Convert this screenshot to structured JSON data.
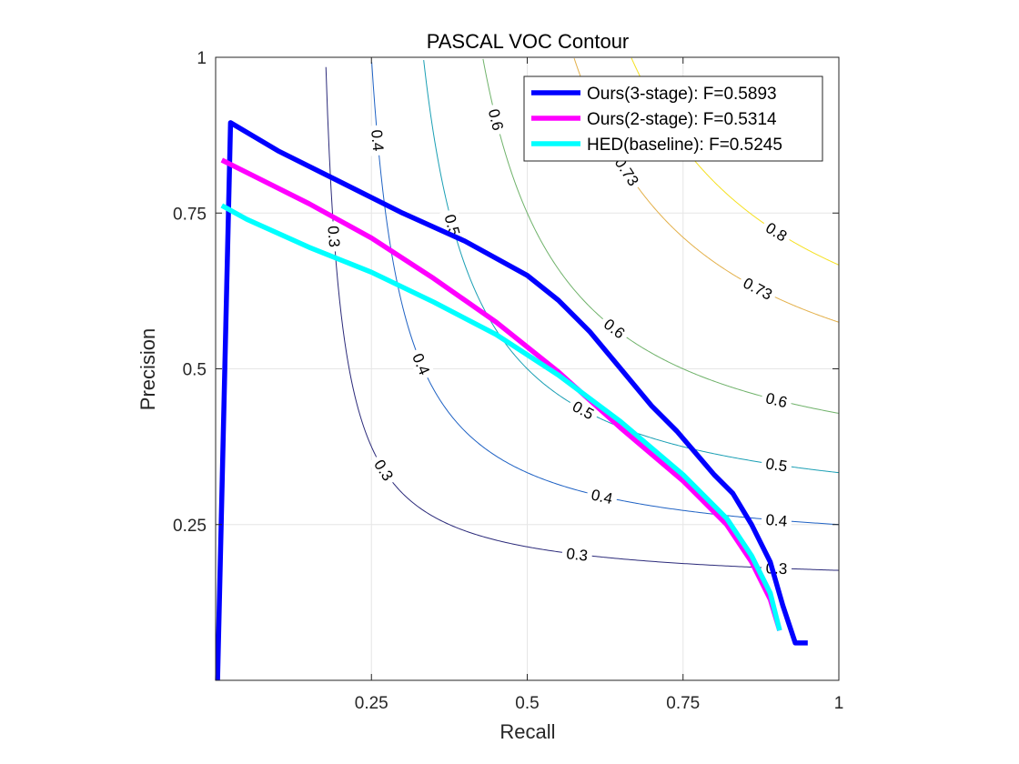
{
  "chart_data": {
    "type": "line",
    "title": "PASCAL VOC Contour",
    "xlabel": "Recall",
    "ylabel": "Precision",
    "xlim": [
      0,
      1
    ],
    "ylim": [
      0,
      1
    ],
    "xticks": [
      0.25,
      0.5,
      0.75,
      1
    ],
    "xtick_labels": [
      "0.25",
      "0.5",
      "0.75",
      "1"
    ],
    "yticks": [
      0.25,
      0.5,
      0.75,
      1
    ],
    "ytick_labels": [
      "0.25",
      "0.5",
      "0.75",
      "1"
    ],
    "grid": true,
    "legend_position": "top-right",
    "series": [
      {
        "name": "Ours(3-stage): F=0.5893",
        "color": "#0000ff",
        "x": [
          0.003,
          0.024,
          0.1,
          0.2,
          0.3,
          0.4,
          0.5,
          0.55,
          0.6,
          0.65,
          0.7,
          0.74,
          0.8,
          0.83,
          0.86,
          0.89,
          0.91,
          0.93,
          0.95
        ],
        "y": [
          0.0,
          0.895,
          0.85,
          0.8,
          0.75,
          0.705,
          0.65,
          0.61,
          0.56,
          0.5,
          0.44,
          0.4,
          0.33,
          0.3,
          0.25,
          0.19,
          0.12,
          0.06,
          0.06
        ]
      },
      {
        "name": "Ours(2-stage): F=0.5314",
        "color": "#ff00ff",
        "x": [
          0.01,
          0.05,
          0.15,
          0.25,
          0.35,
          0.45,
          0.55,
          0.65,
          0.75,
          0.82,
          0.86,
          0.89,
          0.905
        ],
        "y": [
          0.835,
          0.815,
          0.765,
          0.71,
          0.645,
          0.575,
          0.495,
          0.405,
          0.32,
          0.25,
          0.19,
          0.13,
          0.08
        ]
      },
      {
        "name": "HED(baseline): F=0.5245",
        "color": "#00ffff",
        "x": [
          0.01,
          0.05,
          0.15,
          0.25,
          0.35,
          0.45,
          0.55,
          0.65,
          0.75,
          0.82,
          0.86,
          0.89,
          0.905
        ],
        "y": [
          0.762,
          0.74,
          0.695,
          0.655,
          0.607,
          0.555,
          0.49,
          0.415,
          0.33,
          0.26,
          0.2,
          0.14,
          0.08
        ]
      }
    ],
    "iso_f_curves": [
      {
        "f": 0.3,
        "label": "0.3",
        "color": "#2b2a7a"
      },
      {
        "f": 0.4,
        "label": "0.4",
        "color": "#1f62c4"
      },
      {
        "f": 0.5,
        "label": "0.5",
        "color": "#1a9fb4"
      },
      {
        "f": 0.6,
        "label": "0.6",
        "color": "#6fb26a"
      },
      {
        "f": 0.73,
        "label": "0.73",
        "color": "#e3b04a"
      },
      {
        "f": 0.8,
        "label": "0.8",
        "color": "#f5e020"
      }
    ],
    "iso_labels": [
      {
        "f": 0.4,
        "x": 0.26,
        "text": "0.4"
      },
      {
        "f": 0.6,
        "x": 0.45,
        "text": "0.6"
      },
      {
        "f": 0.73,
        "x": 0.66,
        "text": "0.73"
      },
      {
        "f": 0.5,
        "x": 0.38,
        "text": "0.5"
      },
      {
        "f": 0.3,
        "x": 0.19,
        "text": "0.3"
      },
      {
        "f": 0.8,
        "x": 0.9,
        "text": "0.8"
      },
      {
        "f": 0.73,
        "x": 0.87,
        "text": "0.73"
      },
      {
        "f": 0.6,
        "x": 0.64,
        "text": "0.6"
      },
      {
        "f": 0.4,
        "x": 0.33,
        "text": "0.4"
      },
      {
        "f": 0.5,
        "x": 0.59,
        "text": "0.5"
      },
      {
        "f": 0.3,
        "x": 0.27,
        "text": "0.3"
      },
      {
        "f": 0.6,
        "x": 0.9,
        "text": "0.6"
      },
      {
        "f": 0.5,
        "x": 0.9,
        "text": "0.5"
      },
      {
        "f": 0.4,
        "x": 0.62,
        "text": "0.4"
      },
      {
        "f": 0.4,
        "x": 0.9,
        "text": "0.4"
      },
      {
        "f": 0.3,
        "x": 0.58,
        "text": "0.3"
      },
      {
        "f": 0.3,
        "x": 0.9,
        "text": "0.3"
      }
    ]
  }
}
